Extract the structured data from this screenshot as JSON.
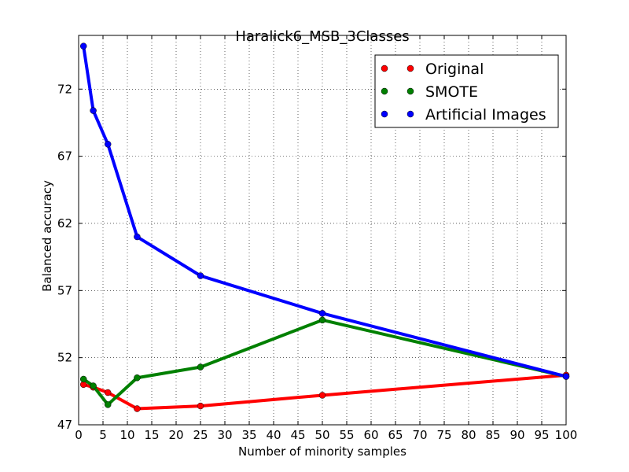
{
  "chart_data": {
    "type": "line",
    "title": "Haralick6_MSB_3Classes",
    "xlabel": "Number of minority samples",
    "ylabel": "Balanced accuracy",
    "xlim": [
      0,
      100
    ],
    "ylim": [
      47,
      76
    ],
    "x_ticks": [
      0,
      5,
      10,
      15,
      20,
      25,
      30,
      35,
      40,
      45,
      50,
      55,
      60,
      65,
      70,
      75,
      80,
      85,
      90,
      95,
      100
    ],
    "y_ticks": [
      47,
      52,
      57,
      62,
      67,
      72
    ],
    "grid": true,
    "legend_position": "top-right",
    "series": [
      {
        "name": "Original",
        "color": "#ff0000",
        "x": [
          1,
          3,
          6,
          12,
          25,
          50,
          100
        ],
        "y": [
          50.0,
          49.8,
          49.4,
          48.2,
          48.4,
          49.2,
          50.7
        ]
      },
      {
        "name": "SMOTE",
        "color": "#008000",
        "x": [
          1,
          3,
          6,
          12,
          25,
          50,
          100
        ],
        "y": [
          50.4,
          49.9,
          48.5,
          50.5,
          51.3,
          54.8,
          50.6
        ]
      },
      {
        "name": "Artificial Images",
        "color": "#0000ff",
        "x": [
          1,
          3,
          6,
          12,
          25,
          50,
          100
        ],
        "y": [
          75.2,
          70.4,
          67.9,
          61.0,
          58.1,
          55.3,
          50.6
        ]
      }
    ]
  }
}
